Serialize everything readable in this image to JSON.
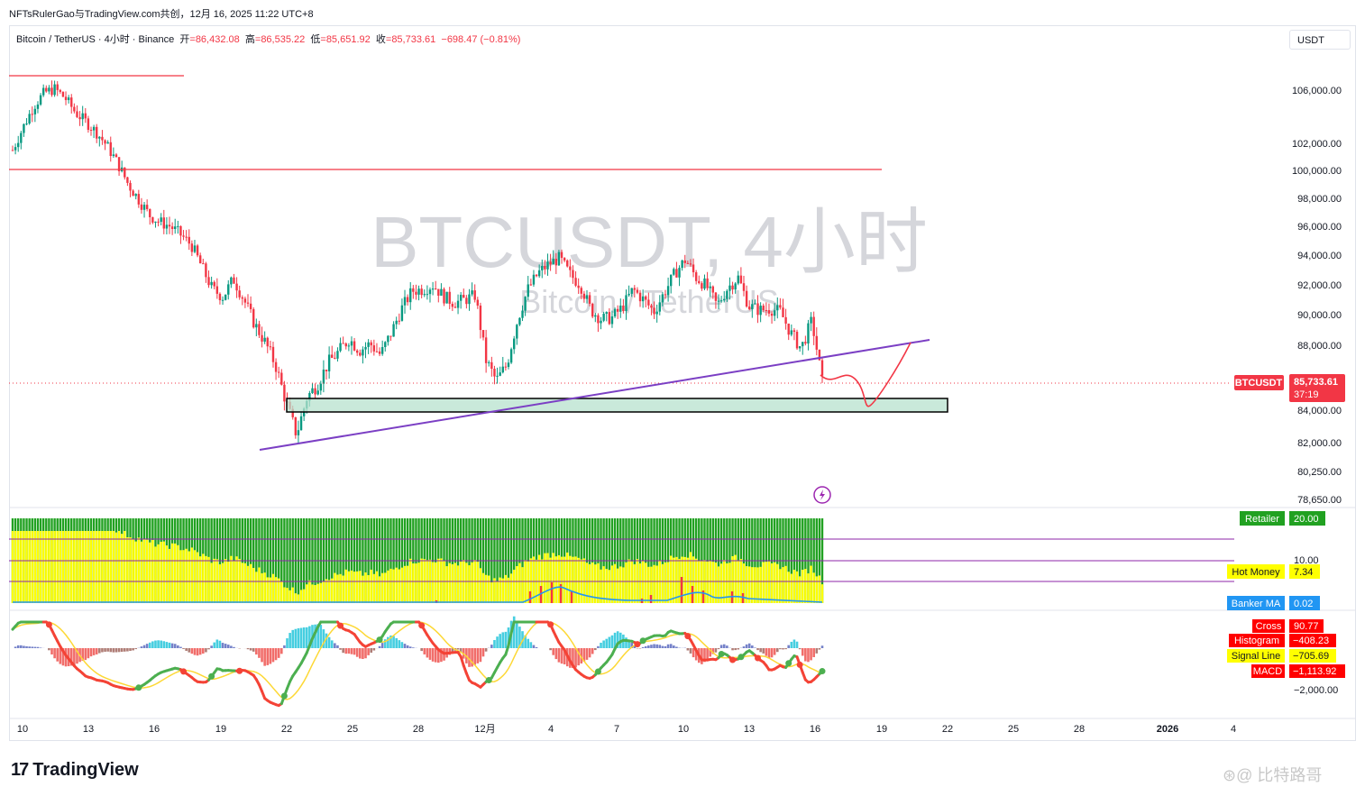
{
  "header": {
    "topbar": "NFTsRulerGao与TradingView.com共创，12月 16, 2025 11:22 UTC+8"
  },
  "legend": {
    "symbol": "Bitcoin / TetherUS · 4小时 · Binance",
    "open_label": "开",
    "open": "=86,432.08",
    "high_label": "高",
    "high": "=86,535.22",
    "low_label": "低",
    "low": "=85,651.92",
    "close_label": "收",
    "close": "=85,733.61",
    "change": "−698.47 (−0.81%)"
  },
  "currency_button": "USDT",
  "watermark": {
    "title": "BTCUSDT, 4小时",
    "subtitle": "Bitcoin / TetherUS"
  },
  "brand": {
    "logo": "17",
    "name": "TradingView"
  },
  "credit": "⊛@ 比特路哥",
  "colors": {
    "up": "#089981",
    "down": "#f23645",
    "trend": "#7b3fc4",
    "zone_fill": "#b7e1cd",
    "retailer": "#21a121",
    "hot_money": "#ffff00",
    "banker": "#2196f3"
  },
  "chart_data": [
    {
      "type": "candlestick",
      "price_axis": {
        "ticks": [
          "106,000.00",
          "102,000.00",
          "100,000.00",
          "98,000.00",
          "96,000.00",
          "94,000.00",
          "92,000.00",
          "90,000.00",
          "88,000.00",
          "84,000.00",
          "82,000.00",
          "80,250.00",
          "78,650.00"
        ]
      },
      "time_axis": {
        "ticks": [
          "10",
          "13",
          "16",
          "19",
          "22",
          "25",
          "28",
          "12月",
          "4",
          "7",
          "10",
          "13",
          "16",
          "19",
          "22",
          "25",
          "28",
          "2026",
          "4"
        ]
      },
      "last_price": {
        "symbol": "BTCUSDT",
        "value": "85,733.61",
        "countdown": "37:19"
      },
      "close_path": [
        [
          0,
          101500
        ],
        [
          1,
          103200
        ],
        [
          2,
          104800
        ],
        [
          3,
          105800
        ],
        [
          4,
          106100
        ],
        [
          5,
          105400
        ],
        [
          6,
          104300
        ],
        [
          7,
          103600
        ],
        [
          8,
          102800
        ],
        [
          9,
          101800
        ],
        [
          10,
          100500
        ],
        [
          11,
          99000
        ],
        [
          12,
          97900
        ],
        [
          13,
          96800
        ],
        [
          14,
          96300
        ],
        [
          15,
          96000
        ],
        [
          16,
          95400
        ],
        [
          17,
          94700
        ],
        [
          18,
          93200
        ],
        [
          19,
          91700
        ],
        [
          20,
          91200
        ],
        [
          21,
          92400
        ],
        [
          22,
          91000
        ],
        [
          23,
          89400
        ],
        [
          24,
          88200
        ],
        [
          25,
          86800
        ],
        [
          26,
          84500
        ],
        [
          27,
          82500
        ],
        [
          28,
          84800
        ],
        [
          29,
          85600
        ],
        [
          30,
          86900
        ],
        [
          31,
          87600
        ],
        [
          32,
          88400
        ],
        [
          33,
          87700
        ],
        [
          34,
          88100
        ],
        [
          35,
          87400
        ],
        [
          36,
          88800
        ],
        [
          37,
          90400
        ],
        [
          38,
          91600
        ],
        [
          39,
          91700
        ],
        [
          40,
          92000
        ],
        [
          41,
          91200
        ],
        [
          42,
          90800
        ],
        [
          43,
          91000
        ],
        [
          44,
          91300
        ],
        [
          45,
          87100
        ],
        [
          46,
          85800
        ],
        [
          47,
          86800
        ],
        [
          48,
          89600
        ],
        [
          49,
          91700
        ],
        [
          50,
          92800
        ],
        [
          51,
          93400
        ],
        [
          52,
          93800
        ],
        [
          53,
          92700
        ],
        [
          54,
          92000
        ],
        [
          55,
          90300
        ],
        [
          56,
          89700
        ],
        [
          57,
          89800
        ],
        [
          58,
          90500
        ],
        [
          59,
          91700
        ],
        [
          60,
          91000
        ],
        [
          61,
          90200
        ],
        [
          62,
          91500
        ],
        [
          63,
          92800
        ],
        [
          64,
          93700
        ],
        [
          65,
          92500
        ],
        [
          66,
          91900
        ],
        [
          67,
          90600
        ],
        [
          68,
          91800
        ],
        [
          69,
          92500
        ],
        [
          70,
          90600
        ],
        [
          71,
          90300
        ],
        [
          72,
          90400
        ],
        [
          73,
          90200
        ],
        [
          74,
          88800
        ],
        [
          75,
          87800
        ],
        [
          76,
          89600
        ],
        [
          77,
          85733
        ]
      ],
      "horizontal_lines": [
        {
          "price": 107100
        },
        {
          "price": 100100
        }
      ],
      "trendline": [
        [
          22,
          81700
        ],
        [
          1030,
          88500
        ]
      ],
      "demand_zone": [
        84600,
        85400
      ],
      "projection": [
        [
          85700
        ],
        [
          84500
        ],
        [
          88200
        ]
      ]
    },
    {
      "type": "bar",
      "indicator": "Retailer / Hot Money / Banker",
      "retailer_value": 20.0,
      "hot_money_value": 7.34,
      "banker_value": 0.02,
      "labels": {
        "retailer": "Retailer",
        "hot_money": "Hot Money",
        "banker": "Banker MA",
        "level": "10.00"
      },
      "values": {
        "retailer": "20.00",
        "hot_money": "7.34",
        "banker": "0.02"
      }
    },
    {
      "type": "line",
      "indicator": "MACD",
      "labels": {
        "cross": "Cross",
        "histogram": "Histogram",
        "signal": "Signal Line",
        "macd": "MACD",
        "level": "−2,000.00"
      },
      "values": {
        "cross": "90.77",
        "histogram": "−408.23",
        "signal": "−705.69",
        "macd": "−1,113.92"
      },
      "cross_value": 90.77,
      "histogram_value": -408.23,
      "signal_value": -705.69,
      "macd_value": -1113.92
    }
  ]
}
